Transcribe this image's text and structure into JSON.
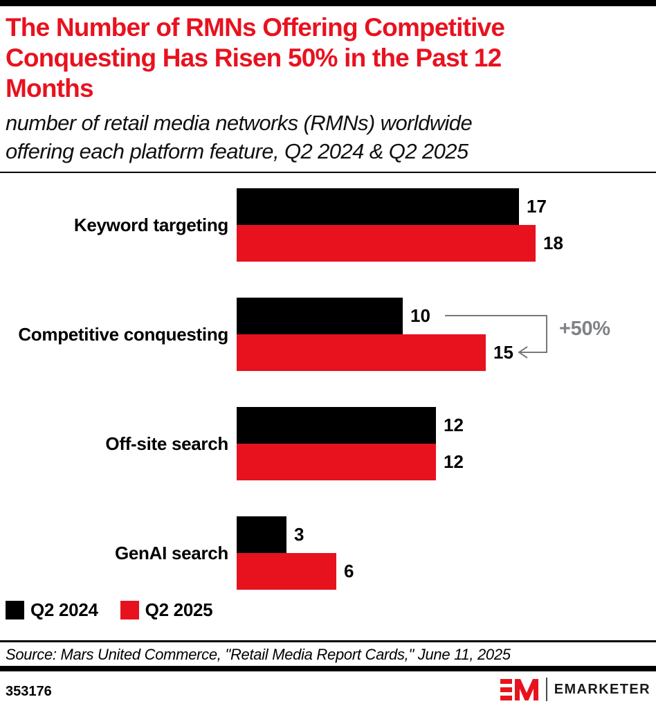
{
  "header": {
    "title_lines": [
      "The Number of RMNs Offering Competitive",
      "Conquesting Has Risen 50% in the Past 12",
      "Months"
    ],
    "subtitle_lines": [
      "number of retail media networks (RMNs) worldwide",
      "offering each platform feature, Q2 2024 & Q2 2025"
    ]
  },
  "chart_data": {
    "type": "bar",
    "orientation": "horizontal",
    "title": "The Number of RMNs Offering Competitive Conquesting Has Risen 50% in the Past 12 Months",
    "subtitle": "number of retail media networks (RMNs) worldwide offering each platform feature, Q2 2024 & Q2 2025",
    "categories": [
      "Keyword targeting",
      "Competitive conquesting",
      "Off-site search",
      "GenAI search"
    ],
    "series": [
      {
        "name": "Q2 2024",
        "color": "#000000",
        "values": [
          17,
          10,
          12,
          3
        ]
      },
      {
        "name": "Q2 2025",
        "color": "#e8121f",
        "values": [
          18,
          15,
          12,
          6
        ]
      }
    ],
    "xlim": [
      0,
      20
    ],
    "grid": false,
    "value_labels": true,
    "legend_position": "bottom-left",
    "annotation": {
      "label": "+50%",
      "category": "Competitive conquesting",
      "from_series": "Q2 2024",
      "from_value": 10,
      "to_series": "Q2 2025",
      "to_value": 15
    }
  },
  "footer": {
    "source": "Source: Mars United Commerce, \"Retail Media Report Cards,\" June 11, 2025",
    "chart_id": "353176",
    "brand_name": "EMARKETER",
    "logo_monogram": "EM"
  },
  "colors": {
    "brand_red": "#e8121f",
    "annotation_text_gray": "#808285",
    "annotation_line_gray": "#77787b",
    "bar_black": "#000000"
  }
}
